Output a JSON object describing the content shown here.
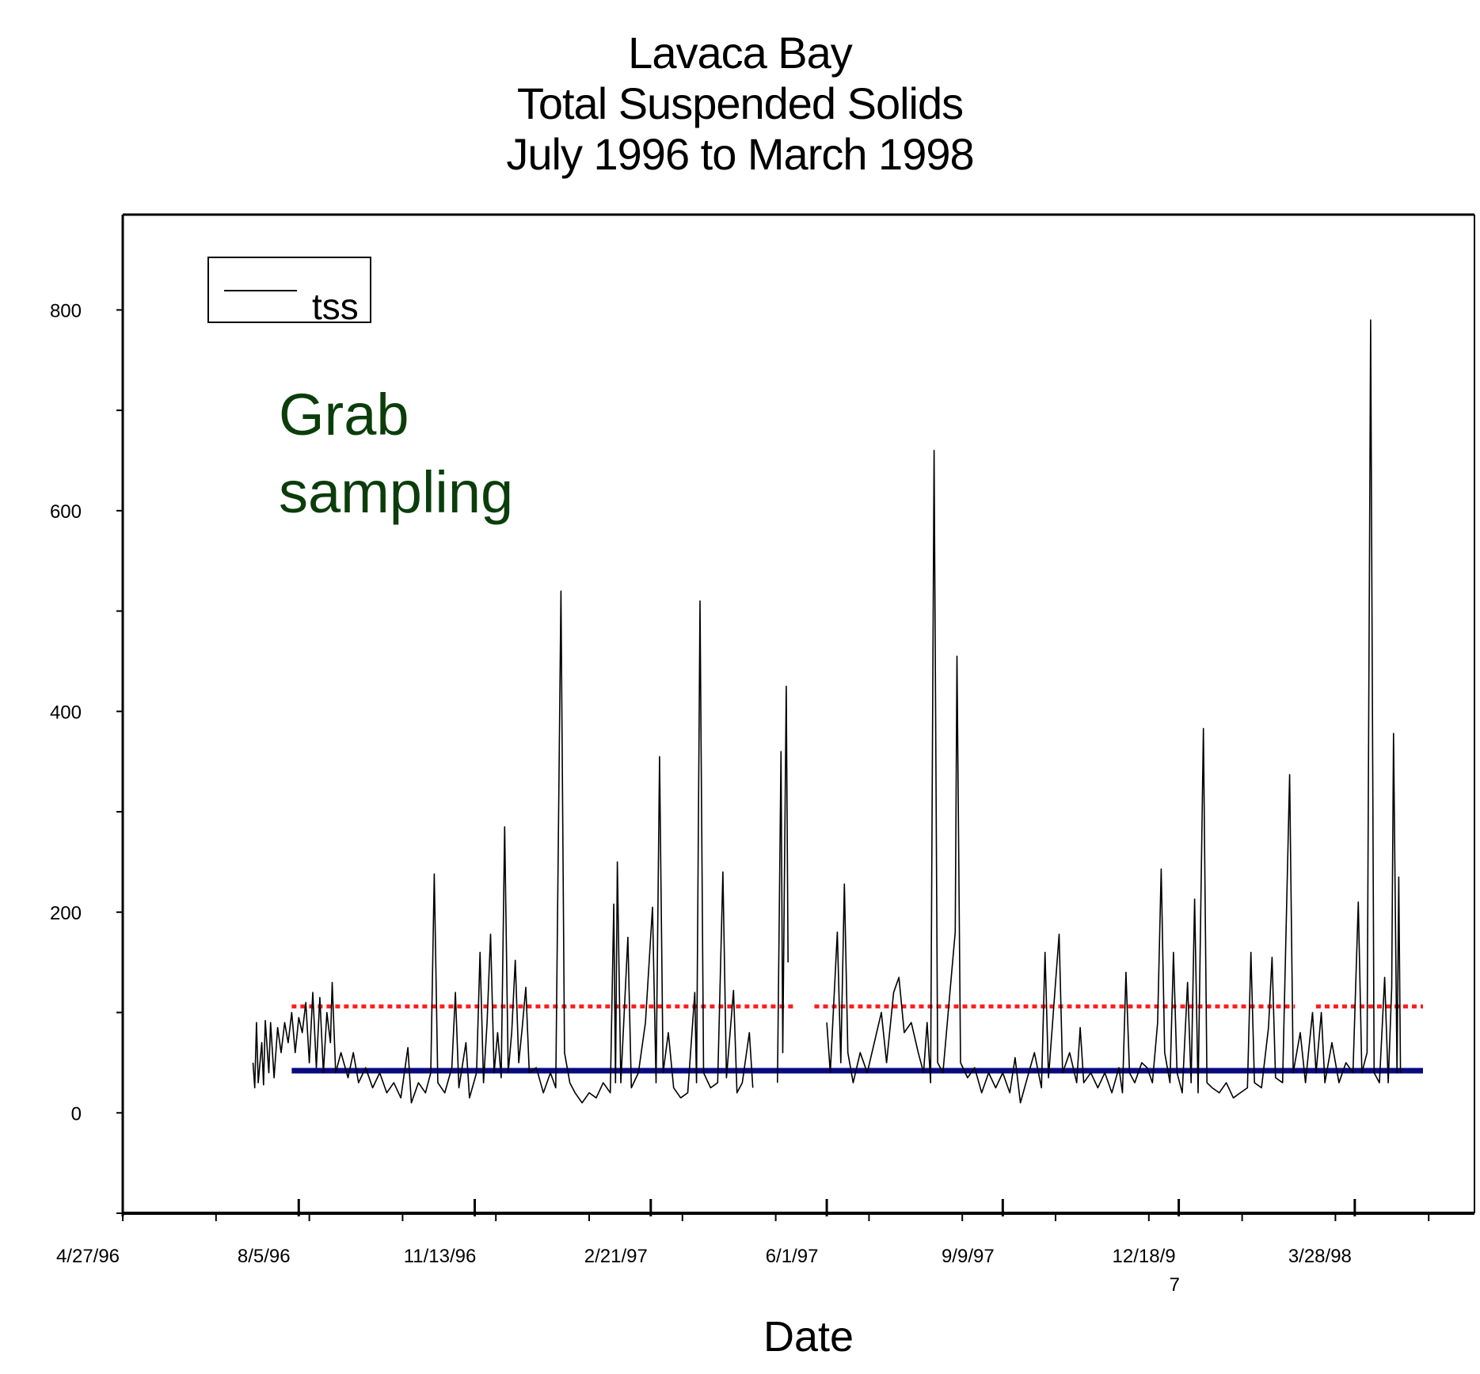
{
  "chart_data": {
    "type": "line",
    "title": [
      "Lavaca Bay",
      "Total Suspended Solids",
      "July 1996 to March 1998"
    ],
    "xlabel": "Date",
    "ylabel": "",
    "x_tick_labels": [
      "4/27/96",
      "8/5/96",
      "11/13/96",
      "2/21/97",
      "6/1/97",
      "9/9/97",
      "12/18/9\n7",
      "3/28/98"
    ],
    "y_tick_labels": [
      "0",
      "200",
      "400",
      "600",
      "800"
    ],
    "ylim": [
      -100,
      895
    ],
    "xlim": [
      "1996-04-27",
      "1998-06-04"
    ],
    "grid": false,
    "legend": {
      "position": "top-left",
      "entries": [
        "tss"
      ]
    },
    "annotation": {
      "text": [
        "Grab",
        "sampling"
      ],
      "color": "#0b3d0b"
    },
    "series": [
      {
        "name": "tss",
        "color": "#000000",
        "points": [
          [
            "1996-07-10",
            50
          ],
          [
            "1996-07-11",
            25
          ],
          [
            "1996-07-12",
            90
          ],
          [
            "1996-07-13",
            30
          ],
          [
            "1996-07-15",
            70
          ],
          [
            "1996-07-16",
            28
          ],
          [
            "1996-07-17",
            92
          ],
          [
            "1996-07-19",
            40
          ],
          [
            "1996-07-20",
            90
          ],
          [
            "1996-07-22",
            35
          ],
          [
            "1996-07-24",
            85
          ],
          [
            "1996-07-26",
            60
          ],
          [
            "1996-07-28",
            90
          ],
          [
            "1996-07-30",
            70
          ],
          [
            "1996-08-01",
            100
          ],
          [
            "1996-08-03",
            60
          ],
          [
            "1996-08-05",
            95
          ],
          [
            "1996-08-07",
            80
          ],
          [
            "1996-08-09",
            110
          ],
          [
            "1996-08-11",
            50
          ],
          [
            "1996-08-13",
            120
          ],
          [
            "1996-08-15",
            45
          ],
          [
            "1996-08-17",
            115
          ],
          [
            "1996-08-19",
            40
          ],
          [
            "1996-08-21",
            100
          ],
          [
            "1996-08-23",
            70
          ],
          [
            "1996-08-24",
            130
          ],
          [
            "1996-08-26",
            40
          ],
          [
            "1996-08-29",
            60
          ],
          [
            "1996-09-02",
            35
          ],
          [
            "1996-09-05",
            60
          ],
          [
            "1996-09-08",
            30
          ],
          [
            "1996-09-12",
            45
          ],
          [
            "1996-09-16",
            25
          ],
          [
            "1996-09-20",
            40
          ],
          [
            "1996-09-24",
            20
          ],
          [
            "1996-09-28",
            30
          ],
          [
            "1996-10-02",
            15
          ],
          [
            "1996-10-06",
            65
          ],
          [
            "1996-10-08",
            10
          ],
          [
            "1996-10-12",
            30
          ],
          [
            "1996-10-16",
            20
          ],
          [
            "1996-10-19",
            40
          ],
          [
            "1996-10-21",
            238
          ],
          [
            "1996-10-23",
            30
          ],
          [
            "1996-10-27",
            20
          ],
          [
            "1996-10-31",
            45
          ],
          [
            "1996-11-02",
            120
          ],
          [
            "1996-11-04",
            25
          ],
          [
            "1996-11-08",
            70
          ],
          [
            "1996-11-10",
            15
          ],
          [
            "1996-11-14",
            40
          ],
          [
            "1996-11-16",
            160
          ],
          [
            "1996-11-18",
            30
          ],
          [
            "1996-11-20",
            90
          ],
          [
            "1996-11-22",
            178
          ],
          [
            "1996-11-24",
            40
          ],
          [
            "1996-11-26",
            80
          ],
          [
            "1996-11-28",
            35
          ],
          [
            "1996-11-30",
            285
          ],
          [
            "1996-12-02",
            40
          ],
          [
            "1996-12-04",
            80
          ],
          [
            "1996-12-06",
            152
          ],
          [
            "1996-12-08",
            50
          ],
          [
            "1996-12-10",
            85
          ],
          [
            "1996-12-12",
            125
          ],
          [
            "1996-12-14",
            40
          ],
          [
            "1996-12-18",
            45
          ],
          [
            "1996-12-22",
            20
          ],
          [
            "1996-12-26",
            40
          ],
          [
            "1996-12-29",
            25
          ],
          [
            "1997-01-01",
            520
          ],
          [
            "1997-01-03",
            60
          ],
          [
            "1997-01-06",
            30
          ],
          [
            "1997-01-09",
            20
          ],
          [
            "1997-01-13",
            10
          ],
          [
            "1997-01-17",
            20
          ],
          [
            "1997-01-21",
            15
          ],
          [
            "1997-01-25",
            30
          ],
          [
            "1997-01-29",
            20
          ],
          [
            "1997-01-31",
            208
          ],
          [
            "1997-02-01",
            30
          ],
          [
            "1997-02-02",
            250
          ],
          [
            "1997-02-04",
            30
          ],
          [
            "1997-02-08",
            175
          ],
          [
            "1997-02-10",
            25
          ],
          [
            "1997-02-14",
            40
          ],
          [
            "1997-02-18",
            90
          ],
          [
            "1997-02-22",
            205
          ],
          [
            "1997-02-24",
            30
          ],
          [
            "1997-02-26",
            355
          ],
          [
            "1997-02-28",
            40
          ],
          [
            "1997-03-03",
            80
          ],
          [
            "1997-03-06",
            25
          ],
          [
            "1997-03-10",
            15
          ],
          [
            "1997-03-14",
            20
          ],
          [
            "1997-03-18",
            120
          ],
          [
            "1997-03-19",
            30
          ],
          [
            "1997-03-21",
            510
          ],
          [
            "1997-03-23",
            40
          ],
          [
            "1997-03-27",
            25
          ],
          [
            "1997-03-31",
            30
          ],
          [
            "1997-04-03",
            240
          ],
          [
            "1997-04-05",
            35
          ],
          [
            "1997-04-09",
            122
          ],
          [
            "1997-04-11",
            20
          ],
          [
            "1997-04-14",
            30
          ],
          [
            "1997-04-18",
            80
          ],
          [
            "1997-04-20",
            25
          ],
          [
            "1997-04-20",
            null
          ],
          [
            "1997-05-04",
            30
          ],
          [
            "1997-05-06",
            360
          ],
          [
            "1997-05-07",
            60
          ],
          [
            "1997-05-09",
            425
          ],
          [
            "1997-05-10",
            150
          ],
          [
            "1997-05-10",
            null
          ],
          [
            "1997-06-01",
            90
          ],
          [
            "1997-06-03",
            40
          ],
          [
            "1997-06-07",
            180
          ],
          [
            "1997-06-09",
            50
          ],
          [
            "1997-06-11",
            228
          ],
          [
            "1997-06-13",
            60
          ],
          [
            "1997-06-16",
            30
          ],
          [
            "1997-06-20",
            60
          ],
          [
            "1997-06-24",
            40
          ],
          [
            "1997-06-28",
            70
          ],
          [
            "1997-07-02",
            100
          ],
          [
            "1997-07-05",
            50
          ],
          [
            "1997-07-09",
            120
          ],
          [
            "1997-07-12",
            135
          ],
          [
            "1997-07-15",
            80
          ],
          [
            "1997-07-19",
            90
          ],
          [
            "1997-07-23",
            60
          ],
          [
            "1997-07-26",
            40
          ],
          [
            "1997-07-28",
            90
          ],
          [
            "1997-07-30",
            30
          ],
          [
            "1997-08-01",
            660
          ],
          [
            "1997-08-03",
            50
          ],
          [
            "1997-08-06",
            40
          ],
          [
            "1997-08-10",
            120
          ],
          [
            "1997-08-13",
            180
          ],
          [
            "1997-08-14",
            455
          ],
          [
            "1997-08-16",
            50
          ],
          [
            "1997-08-20",
            35
          ],
          [
            "1997-08-24",
            45
          ],
          [
            "1997-08-28",
            20
          ],
          [
            "1997-09-01",
            40
          ],
          [
            "1997-09-05",
            25
          ],
          [
            "1997-09-09",
            40
          ],
          [
            "1997-09-13",
            20
          ],
          [
            "1997-09-16",
            55
          ],
          [
            "1997-09-19",
            10
          ],
          [
            "1997-09-23",
            35
          ],
          [
            "1997-09-27",
            60
          ],
          [
            "1997-10-01",
            25
          ],
          [
            "1997-10-03",
            160
          ],
          [
            "1997-10-05",
            35
          ],
          [
            "1997-10-09",
            130
          ],
          [
            "1997-10-11",
            178
          ],
          [
            "1997-10-13",
            40
          ],
          [
            "1997-10-17",
            60
          ],
          [
            "1997-10-21",
            30
          ],
          [
            "1997-10-23",
            85
          ],
          [
            "1997-10-25",
            30
          ],
          [
            "1997-10-29",
            40
          ],
          [
            "1997-11-02",
            25
          ],
          [
            "1997-11-06",
            40
          ],
          [
            "1997-11-10",
            20
          ],
          [
            "1997-11-14",
            45
          ],
          [
            "1997-11-16",
            20
          ],
          [
            "1997-11-18",
            140
          ],
          [
            "1997-11-20",
            40
          ],
          [
            "1997-11-23",
            30
          ],
          [
            "1997-11-27",
            50
          ],
          [
            "1997-11-30",
            45
          ],
          [
            "1997-12-03",
            30
          ],
          [
            "1997-12-06",
            90
          ],
          [
            "1997-12-08",
            243
          ],
          [
            "1997-12-10",
            60
          ],
          [
            "1997-12-13",
            30
          ],
          [
            "1997-12-15",
            160
          ],
          [
            "1997-12-17",
            40
          ],
          [
            "1997-12-20",
            20
          ],
          [
            "1997-12-23",
            130
          ],
          [
            "1997-12-25",
            30
          ],
          [
            "1997-12-27",
            213
          ],
          [
            "1997-12-29",
            20
          ],
          [
            "1998-01-01",
            383
          ],
          [
            "1998-01-03",
            30
          ],
          [
            "1998-01-06",
            25
          ],
          [
            "1998-01-10",
            20
          ],
          [
            "1998-01-14",
            30
          ],
          [
            "1998-01-18",
            15
          ],
          [
            "1998-01-22",
            20
          ],
          [
            "1998-01-26",
            25
          ],
          [
            "1998-01-28",
            160
          ],
          [
            "1998-01-30",
            30
          ],
          [
            "1998-02-03",
            25
          ],
          [
            "1998-02-07",
            85
          ],
          [
            "1998-02-09",
            155
          ],
          [
            "1998-02-11",
            35
          ],
          [
            "1998-02-15",
            30
          ],
          [
            "1998-02-19",
            337
          ],
          [
            "1998-02-21",
            40
          ],
          [
            "1998-02-25",
            80
          ],
          [
            "1998-02-28",
            30
          ],
          [
            "1998-03-04",
            100
          ],
          [
            "1998-03-06",
            40
          ],
          [
            "1998-03-09",
            100
          ],
          [
            "1998-03-11",
            30
          ],
          [
            "1998-03-15",
            70
          ],
          [
            "1998-03-19",
            30
          ],
          [
            "1998-03-23",
            50
          ],
          [
            "1998-03-27",
            40
          ],
          [
            "1998-03-30",
            210
          ],
          [
            "1998-04-01",
            40
          ],
          [
            "1998-04-04",
            60
          ],
          [
            "1998-04-06",
            790
          ],
          [
            "1998-04-08",
            40
          ],
          [
            "1998-04-11",
            30
          ],
          [
            "1998-04-14",
            135
          ],
          [
            "1998-04-16",
            30
          ],
          [
            "1998-04-18",
            125
          ],
          [
            "1998-04-19",
            378
          ],
          [
            "1998-04-21",
            40
          ],
          [
            "1998-04-22",
            235
          ],
          [
            "1998-04-23",
            40
          ]
        ]
      }
    ],
    "reference_lines": [
      {
        "value": 106,
        "color": "#ff1a1a",
        "style": "dotted",
        "xstart": "1996-08-01",
        "xend": "1998-06-04",
        "gaps": [
          [
            "1997-05-13",
            "1997-05-25"
          ],
          [
            "1998-02-22",
            "1998-03-06"
          ]
        ]
      },
      {
        "value": 42,
        "color": "#0a0a80",
        "style": "solid",
        "xstart": "1996-08-01",
        "xend": "1998-06-04"
      }
    ]
  }
}
